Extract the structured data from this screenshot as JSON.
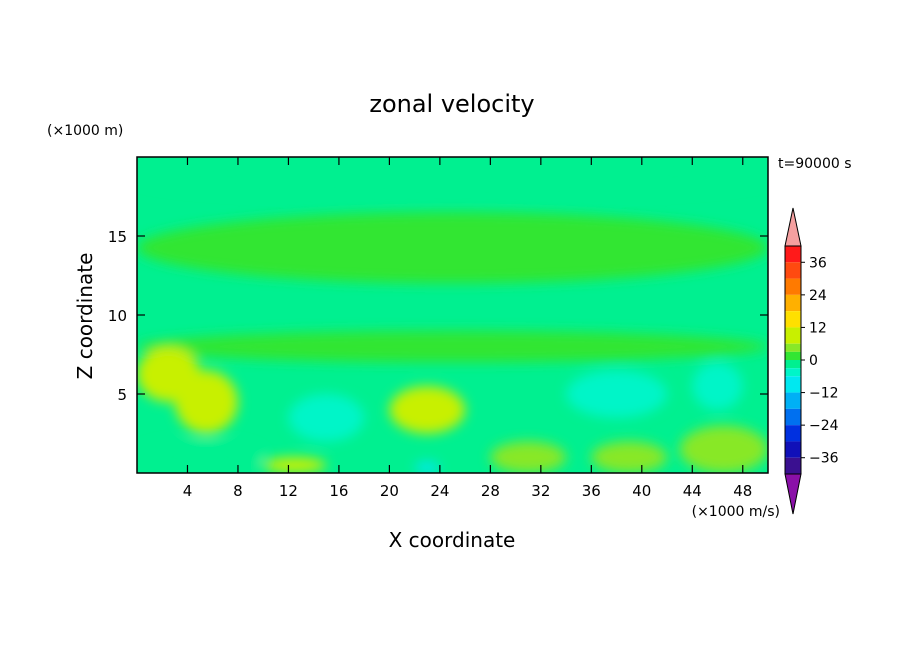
{
  "chart_data": {
    "type": "heatmap",
    "title": "zonal velocity",
    "xlabel": "X coordinate",
    "ylabel": "Z coordinate",
    "x_unit": "(×1000 m/s)",
    "y_unit": "(×1000 m)",
    "time_label": "t=90000 s",
    "xlim": [
      0,
      50
    ],
    "ylim": [
      0,
      20
    ],
    "x_ticks": [
      "4",
      "8",
      "12",
      "16",
      "20",
      "24",
      "28",
      "32",
      "36",
      "40",
      "44",
      "48"
    ],
    "y_ticks": [
      "5",
      "10",
      "15"
    ],
    "colorbar": {
      "labels": [
        "36",
        "24",
        "12",
        "0",
        "−12",
        "−24",
        "−36"
      ],
      "label_values": [
        36,
        24,
        12,
        0,
        -12,
        -24,
        -36
      ],
      "range": [
        -42,
        42
      ],
      "extend": "both",
      "levels": [
        {
          "min": 36,
          "max": 42,
          "color": "#ff1a1a"
        },
        {
          "min": 30,
          "max": 36,
          "color": "#ff4a10"
        },
        {
          "min": 24,
          "max": 30,
          "color": "#ff7a00"
        },
        {
          "min": 18,
          "max": 24,
          "color": "#ffb000"
        },
        {
          "min": 12,
          "max": 18,
          "color": "#ffe000"
        },
        {
          "min": 6,
          "max": 12,
          "color": "#c8f000"
        },
        {
          "min": 3,
          "max": 6,
          "color": "#88e828"
        },
        {
          "min": 0,
          "max": 3,
          "color": "#33e633"
        },
        {
          "min": -3,
          "max": 0,
          "color": "#00f090"
        },
        {
          "min": -6,
          "max": -3,
          "color": "#00f5c8"
        },
        {
          "min": -12,
          "max": -6,
          "color": "#00e8f0"
        },
        {
          "min": -18,
          "max": -12,
          "color": "#00b0f5"
        },
        {
          "min": -24,
          "max": -18,
          "color": "#0070f0"
        },
        {
          "min": -30,
          "max": -24,
          "color": "#0030e0"
        },
        {
          "min": -36,
          "max": -30,
          "color": "#1010b8"
        },
        {
          "min": -42,
          "max": -36,
          "color": "#3a1090"
        }
      ],
      "over_color": "#f5a0a0",
      "under_color": "#8a10a8"
    },
    "background_color": "#00f090",
    "field": [
      {
        "x": [
          0,
          50
        ],
        "z": [
          17.5,
          20
        ],
        "value": -1
      },
      {
        "x": [
          0,
          50
        ],
        "z": [
          12,
          16.5
        ],
        "value": 1.5
      },
      {
        "x": [
          0,
          50
        ],
        "z": [
          7,
          9
        ],
        "value": 1.5
      },
      {
        "x": [
          0,
          5
        ],
        "z": [
          4.5,
          8
        ],
        "value": 7
      },
      {
        "x": [
          3,
          8
        ],
        "z": [
          2.5,
          6.5
        ],
        "value": 8
      },
      {
        "x": [
          10,
          15
        ],
        "z": [
          0,
          1
        ],
        "value": 8
      },
      {
        "x": [
          20,
          26
        ],
        "z": [
          2.5,
          5.5
        ],
        "value": 7
      },
      {
        "x": [
          28,
          34
        ],
        "z": [
          0,
          2
        ],
        "value": 4
      },
      {
        "x": [
          36,
          42
        ],
        "z": [
          0,
          2
        ],
        "value": 5
      },
      {
        "x": [
          43,
          50
        ],
        "z": [
          0,
          3
        ],
        "value": 5
      },
      {
        "x": [
          12,
          18
        ],
        "z": [
          2,
          5
        ],
        "value": -4
      },
      {
        "x": [
          34,
          42
        ],
        "z": [
          3.5,
          6.5
        ],
        "value": -5
      },
      {
        "x": [
          44,
          48
        ],
        "z": [
          4,
          7
        ],
        "value": -4
      },
      {
        "x": [
          0,
          10
        ],
        "z": [
          0,
          2
        ],
        "value": -3
      },
      {
        "x": [
          22,
          24
        ],
        "z": [
          0,
          0.7
        ],
        "value": -8
      }
    ]
  }
}
